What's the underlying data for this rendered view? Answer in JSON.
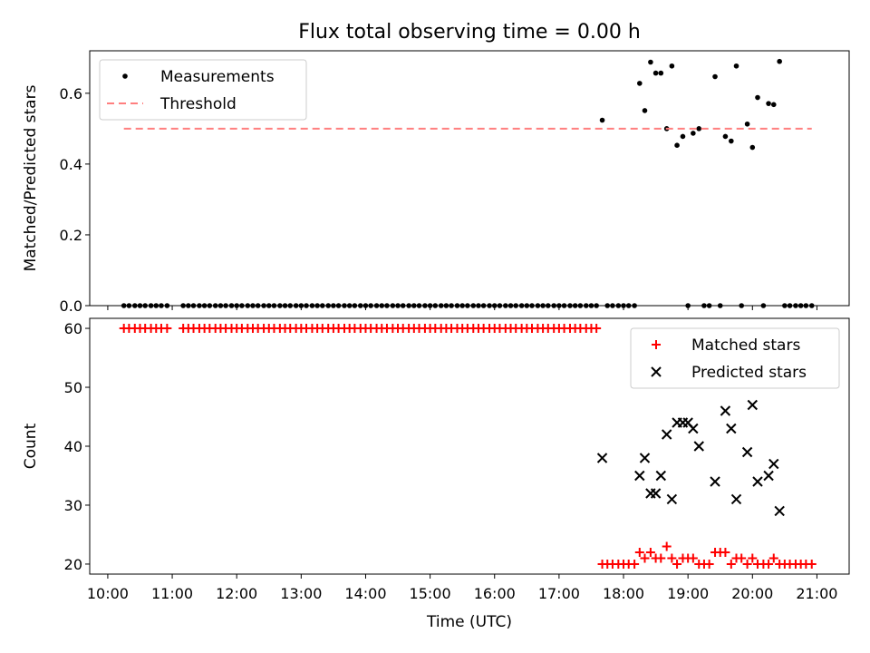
{
  "figure": {
    "title": "Flux total observing time = 0.00 h"
  },
  "chart_data": [
    {
      "type": "scatter",
      "title": "Flux total observing time = 0.00 h",
      "xlabel": "",
      "ylabel": "Matched/Predicted stars",
      "xlim": [
        9.72,
        21.5
      ],
      "ylim": [
        0.0,
        0.72
      ],
      "yticks": [
        0.0,
        0.2,
        0.4,
        0.6
      ],
      "ytick_labels": [
        "0.0",
        "0.2",
        "0.4",
        "0.6"
      ],
      "grid": false,
      "legend_loc": "upper left",
      "series": [
        {
          "name": "Measurements",
          "marker": "dot",
          "color": "#000000",
          "x": [
            10.25,
            10.33,
            10.42,
            10.5,
            10.58,
            10.67,
            10.75,
            10.83,
            10.92,
            11.17,
            11.25,
            11.33,
            11.42,
            11.5,
            11.58,
            11.67,
            11.75,
            11.83,
            11.92,
            12.0,
            12.08,
            12.17,
            12.25,
            12.33,
            12.42,
            12.5,
            12.58,
            12.67,
            12.75,
            12.83,
            12.92,
            13.0,
            13.08,
            13.17,
            13.25,
            13.33,
            13.42,
            13.5,
            13.58,
            13.67,
            13.75,
            13.83,
            13.92,
            14.0,
            14.08,
            14.17,
            14.25,
            14.33,
            14.42,
            14.5,
            14.58,
            14.67,
            14.75,
            14.83,
            14.92,
            15.0,
            15.08,
            15.17,
            15.25,
            15.33,
            15.42,
            15.5,
            15.58,
            15.67,
            15.75,
            15.83,
            15.92,
            16.0,
            16.08,
            16.17,
            16.25,
            16.33,
            16.42,
            16.5,
            16.58,
            16.67,
            16.75,
            16.83,
            16.92,
            17.0,
            17.08,
            17.17,
            17.25,
            17.33,
            17.42,
            17.5,
            17.58,
            17.67,
            17.75,
            17.83,
            17.92,
            18.0,
            18.08,
            18.17,
            18.25,
            18.33,
            18.42,
            18.5,
            18.58,
            18.67,
            18.75,
            18.83,
            18.92,
            19.0,
            19.08,
            19.17,
            19.25,
            19.33,
            19.42,
            19.5,
            19.58,
            19.67,
            19.75,
            19.83,
            19.92,
            20.0,
            20.08,
            20.17,
            20.25,
            20.33,
            20.42,
            20.5,
            20.58,
            20.67,
            20.75,
            20.83,
            20.92
          ],
          "y": [
            0,
            0,
            0,
            0,
            0,
            0,
            0,
            0,
            0,
            0,
            0,
            0,
            0,
            0,
            0,
            0,
            0,
            0,
            0,
            0,
            0,
            0,
            0,
            0,
            0,
            0,
            0,
            0,
            0,
            0,
            0,
            0,
            0,
            0,
            0,
            0,
            0,
            0,
            0,
            0,
            0,
            0,
            0,
            0,
            0,
            0,
            0,
            0,
            0,
            0,
            0,
            0,
            0,
            0,
            0,
            0,
            0,
            0,
            0,
            0,
            0,
            0,
            0,
            0,
            0,
            0,
            0,
            0,
            0,
            0,
            0,
            0,
            0,
            0,
            0,
            0,
            0,
            0,
            0,
            0,
            0,
            0,
            0,
            0,
            0,
            0,
            0,
            0.524,
            0,
            0,
            0,
            0,
            0,
            0,
            0.628,
            0.551,
            0.688,
            0.657,
            0.657,
            0.5,
            0.677,
            0.453,
            0.478,
            0,
            0.487,
            0.5,
            0,
            0,
            0.647,
            0,
            0.478,
            0.465,
            0.677,
            0,
            0.513,
            0.447,
            0.588,
            0,
            0.571,
            0.568,
            0.69,
            0,
            0,
            0,
            0,
            0,
            0
          ]
        },
        {
          "name": "Threshold",
          "style": "dashed",
          "color": "#ff7f7f",
          "x": [
            10.25,
            20.92
          ],
          "y": [
            0.5,
            0.5
          ]
        }
      ]
    },
    {
      "type": "scatter",
      "title": "",
      "xlabel": "Time (UTC)",
      "ylabel": "Count",
      "xlim": [
        9.72,
        21.5
      ],
      "ylim": [
        18.3,
        61.7
      ],
      "yticks": [
        20,
        30,
        40,
        50,
        60
      ],
      "ytick_labels": [
        "20",
        "30",
        "40",
        "50",
        "60"
      ],
      "xticks": [
        10,
        11,
        12,
        13,
        14,
        15,
        16,
        17,
        18,
        19,
        20,
        21
      ],
      "xtick_labels": [
        "10:00",
        "11:00",
        "12:00",
        "13:00",
        "14:00",
        "15:00",
        "16:00",
        "17:00",
        "18:00",
        "19:00",
        "20:00",
        "21:00"
      ],
      "grid": false,
      "legend_loc": "upper right",
      "series": [
        {
          "name": "Matched stars",
          "marker": "plus",
          "color": "#ff0000",
          "x": [
            10.25,
            10.33,
            10.42,
            10.5,
            10.58,
            10.67,
            10.75,
            10.83,
            10.92,
            11.17,
            11.25,
            11.33,
            11.42,
            11.5,
            11.58,
            11.67,
            11.75,
            11.83,
            11.92,
            12.0,
            12.08,
            12.17,
            12.25,
            12.33,
            12.42,
            12.5,
            12.58,
            12.67,
            12.75,
            12.83,
            12.92,
            13.0,
            13.08,
            13.17,
            13.25,
            13.33,
            13.42,
            13.5,
            13.58,
            13.67,
            13.75,
            13.83,
            13.92,
            14.0,
            14.08,
            14.17,
            14.25,
            14.33,
            14.42,
            14.5,
            14.58,
            14.67,
            14.75,
            14.83,
            14.92,
            15.0,
            15.08,
            15.17,
            15.25,
            15.33,
            15.42,
            15.5,
            15.58,
            15.67,
            15.75,
            15.83,
            15.92,
            16.0,
            16.08,
            16.17,
            16.25,
            16.33,
            16.42,
            16.5,
            16.58,
            16.67,
            16.75,
            16.83,
            16.92,
            17.0,
            17.08,
            17.17,
            17.25,
            17.33,
            17.42,
            17.5,
            17.58,
            17.67,
            17.75,
            17.83,
            17.92,
            18.0,
            18.08,
            18.17,
            18.25,
            18.33,
            18.42,
            18.5,
            18.58,
            18.67,
            18.75,
            18.83,
            18.92,
            19.0,
            19.08,
            19.17,
            19.25,
            19.33,
            19.42,
            19.5,
            19.58,
            19.67,
            19.75,
            19.83,
            19.92,
            20.0,
            20.08,
            20.17,
            20.25,
            20.33,
            20.42,
            20.5,
            20.58,
            20.67,
            20.75,
            20.83,
            20.92
          ],
          "y": [
            60,
            60,
            60,
            60,
            60,
            60,
            60,
            60,
            60,
            60,
            60,
            60,
            60,
            60,
            60,
            60,
            60,
            60,
            60,
            60,
            60,
            60,
            60,
            60,
            60,
            60,
            60,
            60,
            60,
            60,
            60,
            60,
            60,
            60,
            60,
            60,
            60,
            60,
            60,
            60,
            60,
            60,
            60,
            60,
            60,
            60,
            60,
            60,
            60,
            60,
            60,
            60,
            60,
            60,
            60,
            60,
            60,
            60,
            60,
            60,
            60,
            60,
            60,
            60,
            60,
            60,
            60,
            60,
            60,
            60,
            60,
            60,
            60,
            60,
            60,
            60,
            60,
            60,
            60,
            60,
            60,
            60,
            60,
            60,
            60,
            60,
            60,
            20,
            20,
            20,
            20,
            20,
            20,
            20,
            22,
            21,
            22,
            21,
            21,
            23,
            21,
            20,
            21,
            21,
            21,
            20,
            20,
            20,
            22,
            22,
            22,
            20,
            21,
            21,
            20,
            21,
            20,
            20,
            20,
            21,
            20,
            20,
            20,
            20,
            20,
            20,
            20
          ]
        },
        {
          "name": "Predicted stars",
          "marker": "x",
          "color": "#000000",
          "x": [
            17.67,
            18.25,
            18.33,
            18.42,
            18.5,
            18.58,
            18.67,
            18.75,
            18.83,
            18.92,
            19.0,
            19.08,
            19.17,
            19.42,
            19.58,
            19.67,
            19.75,
            19.92,
            20.0,
            20.08,
            20.25,
            20.33,
            20.42
          ],
          "y": [
            38,
            35,
            38,
            32,
            32,
            35,
            42,
            31,
            44,
            44,
            44,
            43,
            40,
            34,
            46,
            43,
            31,
            39,
            47,
            34,
            35,
            37,
            29
          ]
        }
      ]
    }
  ]
}
